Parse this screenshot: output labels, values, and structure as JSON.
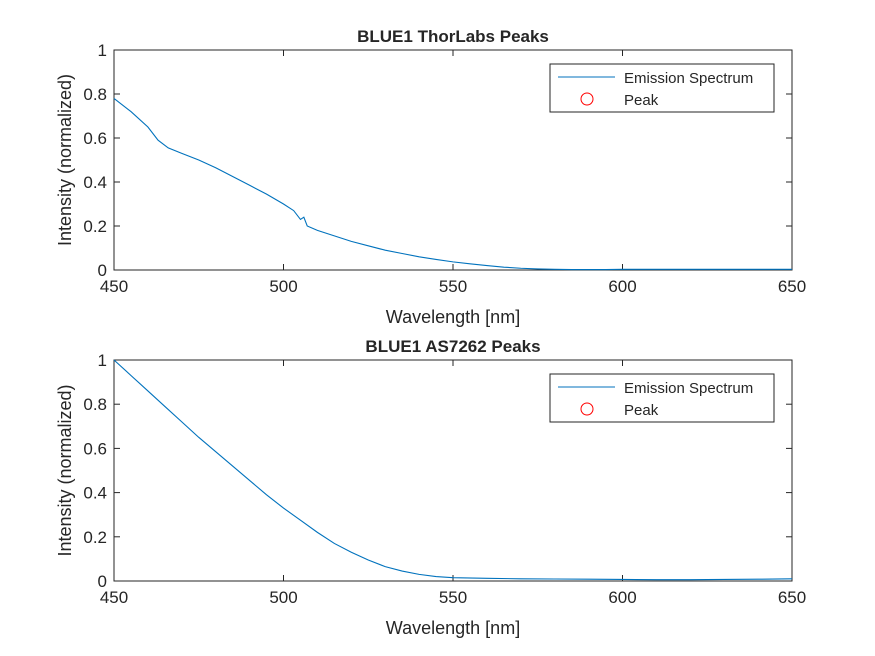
{
  "chart_data": [
    {
      "type": "line",
      "title": "BLUE1 ThorLabs Peaks",
      "xlabel": "Wavelength [nm]",
      "ylabel": "Intensity (normalized)",
      "xlim": [
        450,
        650
      ],
      "ylim": [
        0,
        1
      ],
      "xticks": [
        "450",
        "500",
        "550",
        "600",
        "650"
      ],
      "yticks": [
        "0",
        "0.2",
        "0.4",
        "0.6",
        "0.8",
        "1"
      ],
      "legend_position": "top-right",
      "series": [
        {
          "name": "Emission Spectrum",
          "color": "#0072BD",
          "marker": "none",
          "x": [
            450,
            455,
            460,
            463,
            466,
            470,
            475,
            480,
            485,
            490,
            495,
            500,
            503,
            505,
            506,
            507,
            510,
            515,
            520,
            525,
            530,
            535,
            540,
            545,
            550,
            555,
            560,
            565,
            570,
            575,
            580,
            585,
            590,
            595,
            600,
            610,
            620,
            630,
            640,
            650
          ],
          "y": [
            0.78,
            0.72,
            0.65,
            0.59,
            0.555,
            0.53,
            0.5,
            0.465,
            0.425,
            0.385,
            0.345,
            0.3,
            0.27,
            0.23,
            0.24,
            0.2,
            0.18,
            0.155,
            0.13,
            0.11,
            0.09,
            0.075,
            0.06,
            0.048,
            0.037,
            0.028,
            0.02,
            0.013,
            0.008,
            0.005,
            0.003,
            0.002,
            0.002,
            0.002,
            0.003,
            0.003,
            0.003,
            0.003,
            0.003,
            0.003
          ]
        },
        {
          "name": "Peak",
          "color": "#FF0000",
          "marker": "circle",
          "x": [],
          "y": []
        }
      ]
    },
    {
      "type": "line",
      "title": "BLUE1 AS7262 Peaks",
      "xlabel": "Wavelength [nm]",
      "ylabel": "Intensity (normalized)",
      "xlim": [
        450,
        650
      ],
      "ylim": [
        0,
        1
      ],
      "xticks": [
        "450",
        "500",
        "550",
        "600",
        "650"
      ],
      "yticks": [
        "0",
        "0.2",
        "0.4",
        "0.6",
        "0.8",
        "1"
      ],
      "legend_position": "top-right",
      "series": [
        {
          "name": "Emission Spectrum",
          "color": "#0072BD",
          "marker": "none",
          "x": [
            450,
            455,
            460,
            465,
            470,
            475,
            480,
            485,
            490,
            495,
            500,
            505,
            510,
            515,
            520,
            525,
            530,
            535,
            540,
            545,
            550,
            560,
            570,
            580,
            590,
            600,
            610,
            620,
            630,
            640,
            650
          ],
          "y": [
            1.0,
            0.93,
            0.86,
            0.79,
            0.72,
            0.65,
            0.585,
            0.52,
            0.455,
            0.39,
            0.33,
            0.275,
            0.22,
            0.17,
            0.13,
            0.095,
            0.065,
            0.045,
            0.03,
            0.02,
            0.015,
            0.012,
            0.01,
            0.009,
            0.008,
            0.007,
            0.006,
            0.006,
            0.007,
            0.008,
            0.01
          ]
        },
        {
          "name": "Peak",
          "color": "#FF0000",
          "marker": "circle",
          "x": [],
          "y": []
        }
      ]
    }
  ]
}
